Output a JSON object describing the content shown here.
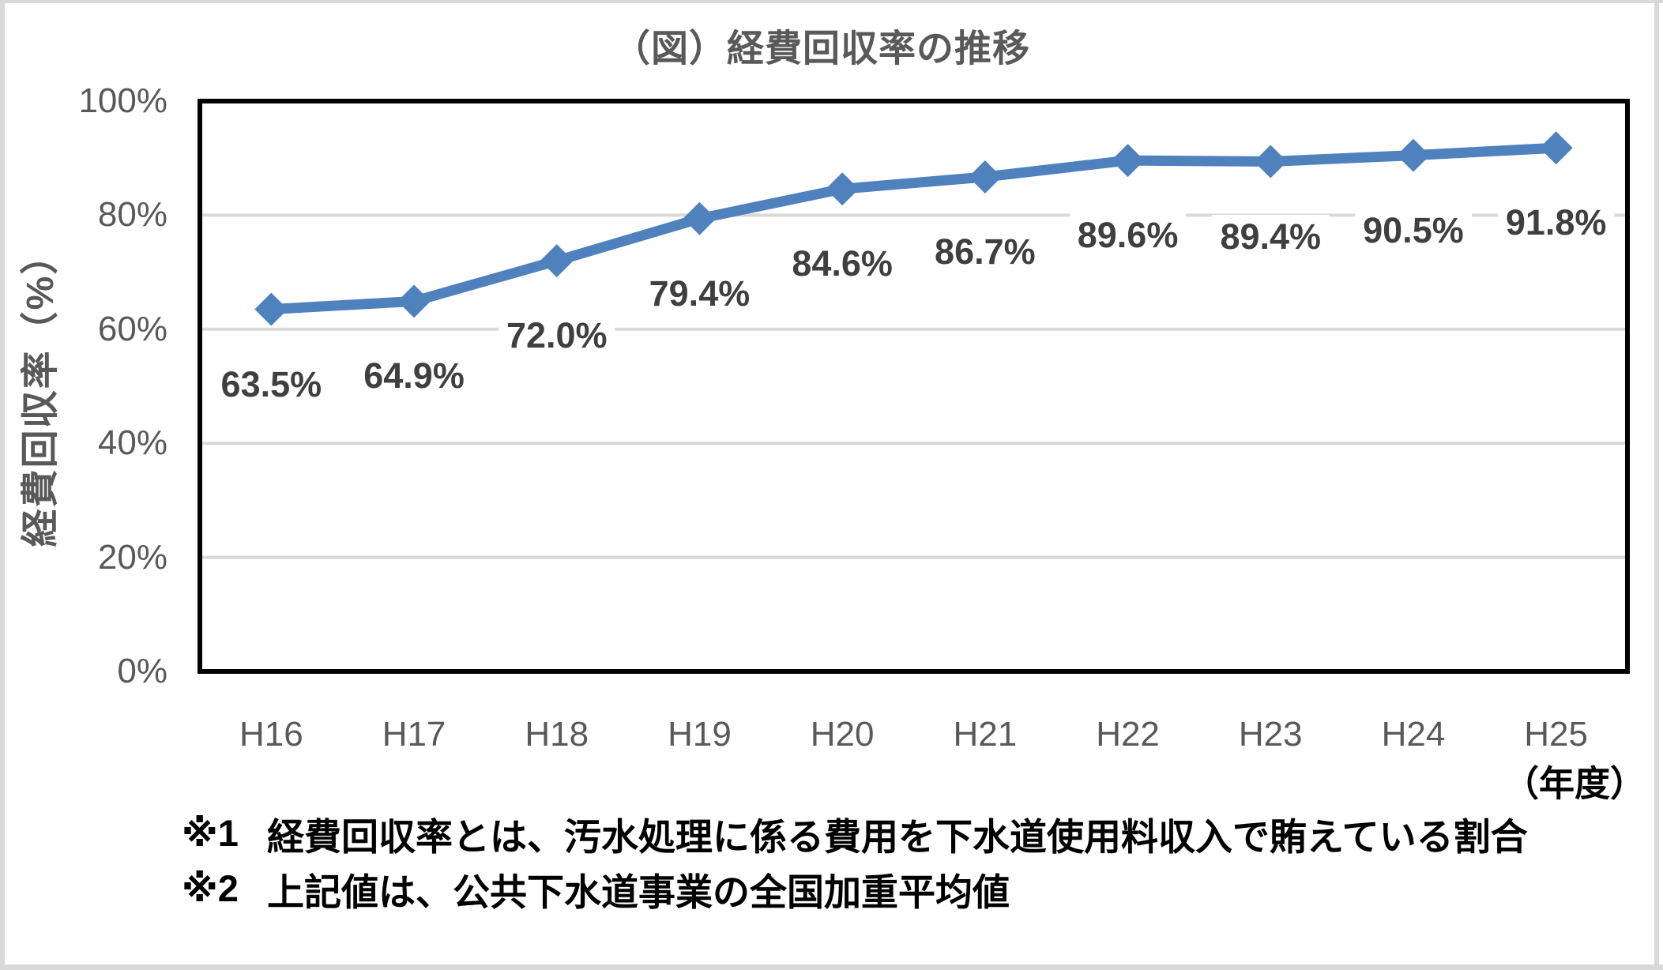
{
  "title": "（図）経費回収率の推移",
  "y_axis_title": "経費回収率（%）",
  "x_axis_unit": "（年度）",
  "footnotes": [
    {
      "marker": "※1",
      "text": "経費回収率とは、汚水処理に係る費用を下水道使用料収入で賄えている割合"
    },
    {
      "marker": "※2",
      "text": "上記値は、公共下水道事業の全国加重平均値"
    }
  ],
  "colors": {
    "line": "#4F81BD",
    "grid": "#D9D9D9",
    "axis_text": "#595959",
    "data_label_text": "#3F3F3F",
    "plot_border": "#000000",
    "frame_edge": "#D9D9D9"
  },
  "chart_data": {
    "type": "line",
    "title": "（図）経費回収率の推移",
    "categories": [
      "H16",
      "H17",
      "H18",
      "H19",
      "H20",
      "H21",
      "H22",
      "H23",
      "H24",
      "H25"
    ],
    "series": [
      {
        "name": "経費回収率",
        "values": [
          63.5,
          64.9,
          72.0,
          79.4,
          84.6,
          86.7,
          89.6,
          89.4,
          90.5,
          91.8
        ]
      }
    ],
    "data_labels": [
      "63.5%",
      "64.9%",
      "72.0%",
      "79.4%",
      "84.6%",
      "86.7%",
      "89.6%",
      "89.4%",
      "90.5%",
      "91.8%"
    ],
    "xlabel": "（年度）",
    "ylabel": "経費回収率（%）",
    "ylim": [
      0,
      100
    ],
    "y_ticks": [
      "0%",
      "20%",
      "40%",
      "60%",
      "80%",
      "100%"
    ],
    "grid": "horizontal",
    "legend": "none",
    "marker": "diamond"
  }
}
